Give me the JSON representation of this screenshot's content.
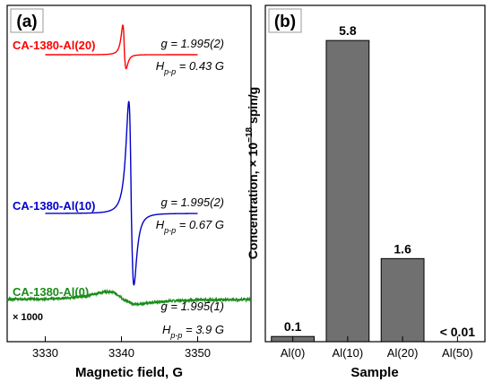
{
  "chart_data": [
    {
      "type": "line",
      "panel_label": "(a)",
      "xlabel": "Magnetic field, G",
      "xlim": [
        3325,
        3357
      ],
      "xticks": [
        3330,
        3340,
        3350
      ],
      "grid": false,
      "multiplier_note": "× 1000",
      "series": [
        {
          "name": "CA-1380-Al(20)",
          "color": "#ff0000",
          "center": 3340.4,
          "hpp": 0.43,
          "x_range": [
            3330,
            3350
          ],
          "peak_up": 38,
          "peak_down": 18,
          "noise": 0,
          "annotations": [
            "g = 1.995(2)",
            "H",
            "p-p",
            " = 0.43 G"
          ]
        },
        {
          "name": "CA-1380-Al(10)",
          "color": "#0000cc",
          "center": 3341.3,
          "hpp": 0.67,
          "x_range": [
            3330,
            3350
          ],
          "peak_up": 144,
          "peak_down": 92,
          "noise": 0,
          "annotations": [
            "g = 1.995(2)",
            "H",
            "p-p",
            " = 0.67 G"
          ]
        },
        {
          "name": "CA-1380-Al(0)",
          "color": "#1a8c1a",
          "center": 3340.2,
          "hpp": 3.9,
          "x_range": [
            3325,
            3357
          ],
          "peak_up": 10,
          "peak_down": 6,
          "noise": 1.2,
          "annotations": [
            "g = 1.995(1)",
            "H",
            "p-p",
            " = 3.9 G"
          ]
        }
      ]
    },
    {
      "type": "bar",
      "panel_label": "(b)",
      "xlabel": "Sample",
      "ylabel": "Concentration, × 10",
      "ylabel_exponent": "−18",
      "ylabel_unit": " spin/g",
      "categories": [
        "Al(0)",
        "Al(10)",
        "Al(20)",
        "Al(50)"
      ],
      "values": [
        0.1,
        5.8,
        1.6,
        0
      ],
      "data_labels": [
        "0.1",
        "5.8",
        "1.6",
        "< 0.01"
      ],
      "ylim": [
        0,
        6.2
      ],
      "bar_color": "#707070",
      "grid": false
    }
  ]
}
